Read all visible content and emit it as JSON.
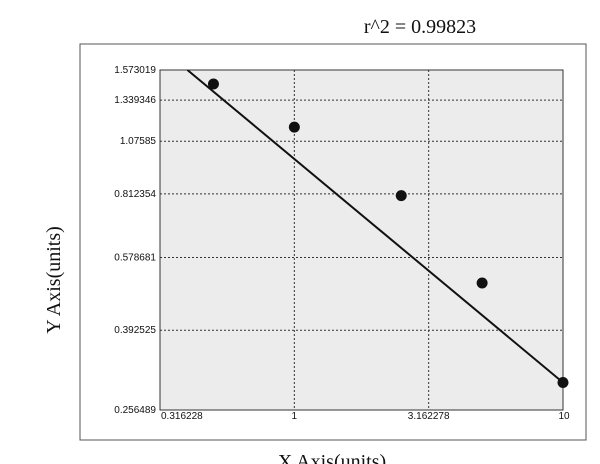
{
  "chart_data": {
    "type": "scatter",
    "title": "r^2  =  0.99823",
    "xlabel": "X Axis(units)",
    "ylabel": "Y Axis(units)",
    "x_scale": "log",
    "y_scale": "log",
    "xlim": [
      0.316228,
      10
    ],
    "ylim": [
      0.256489,
      1.573019
    ],
    "x_ticks": [
      0.316228,
      1,
      3.162278,
      10
    ],
    "x_tick_labels": [
      "0.316228",
      "1",
      "3.162278",
      "10"
    ],
    "y_ticks": [
      0.256489,
      0.392525,
      0.578681,
      0.812354,
      1.07585,
      1.339346,
      1.573019
    ],
    "y_tick_labels": [
      "0.256489",
      "0.392525",
      "0.578681",
      "0.812354",
      "1.07585",
      "1.339346",
      "1.573019"
    ],
    "grid": true,
    "points": [
      {
        "x": 0.5,
        "y": 1.46
      },
      {
        "x": 1.0,
        "y": 1.16
      },
      {
        "x": 2.5,
        "y": 0.805
      },
      {
        "x": 5.0,
        "y": 0.505
      },
      {
        "x": 10.0,
        "y": 0.297
      }
    ],
    "fit_line": [
      {
        "x": 0.4,
        "y": 1.573019
      },
      {
        "x": 10.0,
        "y": 0.297
      }
    ],
    "colors": {
      "plot_background": "#ececec",
      "frame_background": "#ffffff",
      "point": "#111111",
      "line": "#111111"
    }
  }
}
